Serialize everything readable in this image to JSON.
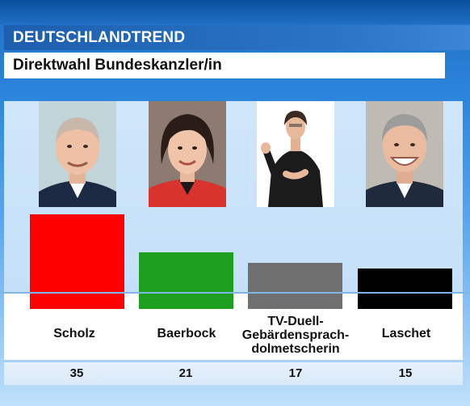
{
  "header": {
    "title": "DEUTSCHLANDTREND",
    "subtitle": "Direktwahl Bundeskanzler/in"
  },
  "chart_data": {
    "type": "bar",
    "title": "Direktwahl Bundeskanzler/in",
    "categories": [
      "Scholz",
      "Baerbock",
      "TV-Duell-Gebärdensprach-dolmetscherin",
      "Laschet"
    ],
    "values": [
      35,
      21,
      17,
      15
    ],
    "colors": [
      "#ff0000",
      "#1e9e1e",
      "#6f6f6f",
      "#000000"
    ],
    "grid": false,
    "legend": "none",
    "ylim": [
      0,
      35
    ],
    "category_lines": [
      [
        "Scholz"
      ],
      [
        "Baerbock"
      ],
      [
        "TV-Duell-",
        "Gebärdensprach-",
        "dolmetscherin"
      ],
      [
        "Laschet"
      ]
    ],
    "value_labels": [
      "35",
      "21",
      "17",
      "15"
    ]
  }
}
